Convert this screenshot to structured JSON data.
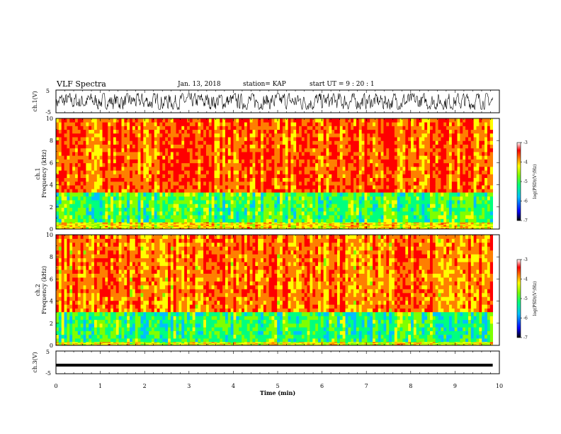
{
  "header": {
    "title": "VLF Spectra",
    "date": "Jan. 13, 2018",
    "station": "station= KAP",
    "start_ut": "start  UT =  9 : 20 : 1"
  },
  "colors": {
    "background": "#ffffff",
    "axes": "#000000",
    "waveform": "#000000",
    "colormap": [
      "#000000",
      "#0000ff",
      "#00bfff",
      "#00ff7f",
      "#7fff00",
      "#ffff00",
      "#ff7f00",
      "#ff0000",
      "#ffffff"
    ]
  },
  "chart_data": [
    {
      "type": "line",
      "ylabel": "ch.1(V)",
      "ylim": [
        -5,
        5
      ],
      "yticks": [
        "5",
        "-5"
      ],
      "xlim": [
        0,
        10
      ],
      "description_values": {
        "amplitude_range_v": [
          -3.5,
          3.5
        ],
        "mean_v": 0
      }
    },
    {
      "type": "heatmap",
      "ylabel": "ch.1\nFrequency (kHz)",
      "ylim": [
        0,
        10
      ],
      "yticks": [
        "0",
        "2",
        "4",
        "6",
        "8",
        "10"
      ],
      "xlim": [
        0,
        9.85
      ],
      "colorbar": {
        "label": "log(PSD)(V²/Hz)",
        "range": [
          -7,
          -3
        ],
        "ticks": [
          "-3",
          "-4",
          "-5",
          "-6",
          "-7"
        ]
      },
      "bands": [
        {
          "freq_khz": [
            3.3,
            10
          ],
          "log_psd": -3.6
        },
        {
          "freq_khz": [
            0.6,
            3.3
          ],
          "log_psd": -5.0
        },
        {
          "freq_khz": [
            0,
            0.6
          ],
          "log_psd": -4.2
        }
      ]
    },
    {
      "type": "heatmap",
      "ylabel": "ch.2\nFrequency (kHz)",
      "ylim": [
        0,
        10
      ],
      "yticks": [
        "0",
        "2",
        "4",
        "6",
        "8",
        "10"
      ],
      "xlim": [
        0,
        9.85
      ],
      "colorbar": {
        "label": "log(PSD)(V²/Hz)",
        "range": [
          -7,
          -3
        ],
        "ticks": [
          "-3",
          "-4",
          "-5",
          "-6",
          "-7"
        ]
      },
      "bands": [
        {
          "freq_khz": [
            3.0,
            10
          ],
          "log_psd": -3.7
        },
        {
          "freq_khz": [
            0.3,
            3.0
          ],
          "log_psd": -5.1
        },
        {
          "freq_khz": [
            0,
            0.3
          ],
          "log_psd": -4.3
        }
      ]
    },
    {
      "type": "line",
      "ylabel": "ch.3(V)",
      "ylim": [
        -5,
        5
      ],
      "yticks": [
        "5",
        "-5"
      ],
      "xlim": [
        0,
        10
      ],
      "series": [
        {
          "x": [
            0,
            9.85
          ],
          "y": [
            -1.2,
            -1.2
          ]
        }
      ]
    }
  ],
  "xaxis": {
    "label": "Time (min)",
    "ticks": [
      "0",
      "1",
      "2",
      "3",
      "4",
      "5",
      "6",
      "7",
      "8",
      "9",
      "10"
    ],
    "range": [
      0,
      10
    ]
  }
}
